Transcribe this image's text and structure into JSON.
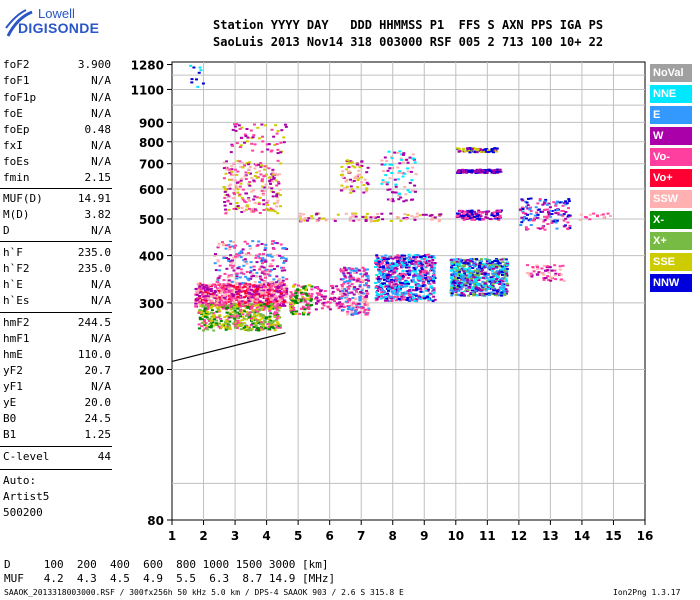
{
  "logo": {
    "line1": "Lowell",
    "line2": "DIGISONDE"
  },
  "header": {
    "row1": "Station YYYY DAY   DDD HHMMSS P1  FFS S AXN PPS IGA PS",
    "row2": "SaoLuis 2013 Nov14 318 003000 RSF 005 2 713 100 10+ 22"
  },
  "params": [
    {
      "key": "foF2",
      "value": "3.900"
    },
    {
      "key": "foF1",
      "value": "N/A"
    },
    {
      "key": "foF1p",
      "value": "N/A"
    },
    {
      "key": "foE",
      "value": "N/A"
    },
    {
      "key": "foEp",
      "value": "0.48"
    },
    {
      "key": "fxI",
      "value": "N/A"
    },
    {
      "key": "foEs",
      "value": "N/A"
    },
    {
      "key": "fmin",
      "value": "2.15"
    },
    {
      "key": "MUF(D)",
      "value": "14.91"
    },
    {
      "key": "M(D)",
      "value": "3.82"
    },
    {
      "key": "D",
      "value": "N/A"
    },
    {
      "key": "h`F",
      "value": "235.0"
    },
    {
      "key": "h`F2",
      "value": "235.0"
    },
    {
      "key": "h`E",
      "value": "N/A"
    },
    {
      "key": "h`Es",
      "value": "N/A"
    },
    {
      "key": "hmF2",
      "value": "244.5"
    },
    {
      "key": "hmF1",
      "value": "N/A"
    },
    {
      "key": "hmE",
      "value": "110.0"
    },
    {
      "key": "yF2",
      "value": "20.7"
    },
    {
      "key": "yF1",
      "value": "N/A"
    },
    {
      "key": "yE",
      "value": "20.0"
    },
    {
      "key": "B0",
      "value": "24.5"
    },
    {
      "key": "B1",
      "value": "1.25"
    },
    {
      "key": "C-level",
      "value": "44"
    }
  ],
  "autoscale": {
    "line1": "Auto:",
    "line2": "Artist5",
    "line3": "500200"
  },
  "bottom": {
    "d_row": "D     100  200  400  600  800 1000 1500 3000 [km]",
    "muf_row": "MUF   4.2  4.3  4.5  4.9  5.5  6.3  8.7 14.9 [MHz]",
    "footer_left": "SAAOK_2013318003000.RSF / 300fx256h 50 kHz 5.0 km / DPS-4 SAAOK 903 / 2.6 S 315.8 E",
    "footer_right": "Ion2Png 1.3.17"
  },
  "chart_data": {
    "type": "scatter",
    "xlabel": "",
    "ylabel": "",
    "xlim": [
      1,
      16
    ],
    "ylim": [
      80,
      1300
    ],
    "y_scale": "log",
    "x_ticks": [
      1,
      2,
      3,
      4,
      5,
      6,
      7,
      8,
      9,
      10,
      11,
      12,
      13,
      14,
      15,
      16
    ],
    "y_ticks": [
      80,
      200,
      300,
      400,
      500,
      600,
      700,
      800,
      900,
      1100,
      1280
    ],
    "grid": true,
    "legend_position": "right",
    "legend": [
      {
        "label": "NoVal",
        "color": "#a0a0a0"
      },
      {
        "label": "NNE",
        "color": "#00e8ff"
      },
      {
        "label": "E",
        "color": "#3399ff"
      },
      {
        "label": "W",
        "color": "#aa00aa"
      },
      {
        "label": "Vo-",
        "color": "#ff3fa0"
      },
      {
        "label": "Vo+",
        "color": "#ff0033"
      },
      {
        "label": "SSW",
        "color": "#ffb0b0"
      },
      {
        "label": "X-",
        "color": "#008800"
      },
      {
        "label": "X+",
        "color": "#77bb44"
      },
      {
        "label": "SSE",
        "color": "#cccc00"
      },
      {
        "label": "NNW",
        "color": "#0000dd"
      }
    ],
    "clusters": [
      {
        "x": [
          1.7,
          4.6
        ],
        "y": [
          295,
          340
        ],
        "colors": [
          "#ff3fa0",
          "#aa00aa",
          "#ff0033",
          "#ffb0b0"
        ],
        "n": 700
      },
      {
        "x": [
          1.8,
          4.4
        ],
        "y": [
          255,
          300
        ],
        "colors": [
          "#77bb44",
          "#008800",
          "#ff3fa0",
          "#cccc00"
        ],
        "n": 450
      },
      {
        "x": [
          2.3,
          4.6
        ],
        "y": [
          340,
          440
        ],
        "colors": [
          "#ff3fa0",
          "#ffb0b0",
          "#aa00aa",
          "#3399ff"
        ],
        "n": 220
      },
      {
        "x": [
          2.6,
          4.4
        ],
        "y": [
          520,
          720
        ],
        "colors": [
          "#aa00aa",
          "#ff3fa0",
          "#ffb0b0",
          "#cccc00"
        ],
        "n": 220
      },
      {
        "x": [
          2.8,
          4.6
        ],
        "y": [
          750,
          900
        ],
        "colors": [
          "#cccc00",
          "#ff3fa0",
          "#aa00aa"
        ],
        "n": 60
      },
      {
        "x": [
          4.7,
          5.4
        ],
        "y": [
          280,
          340
        ],
        "colors": [
          "#ff3fa0",
          "#cccc00",
          "#008800"
        ],
        "n": 120
      },
      {
        "x": [
          5.5,
          6.3
        ],
        "y": [
          290,
          335
        ],
        "colors": [
          "#ff3fa0",
          "#aa00aa"
        ],
        "n": 60
      },
      {
        "x": [
          6.3,
          7.2
        ],
        "y": [
          280,
          375
        ],
        "colors": [
          "#ff3fa0",
          "#ffb0b0",
          "#aa00aa",
          "#3399ff"
        ],
        "n": 240
      },
      {
        "x": [
          7.4,
          9.3
        ],
        "y": [
          305,
          405
        ],
        "colors": [
          "#3399ff",
          "#0000dd",
          "#00e8ff",
          "#ff3fa0",
          "#aa00aa"
        ],
        "n": 650
      },
      {
        "x": [
          9.8,
          11.6
        ],
        "y": [
          315,
          395
        ],
        "colors": [
          "#00e8ff",
          "#3399ff",
          "#0000dd",
          "#77bb44",
          "#aa00aa"
        ],
        "n": 650
      },
      {
        "x": [
          6.3,
          7.2
        ],
        "y": [
          590,
          720
        ],
        "colors": [
          "#ffb0b0",
          "#aa00aa",
          "#cccc00"
        ],
        "n": 70
      },
      {
        "x": [
          7.6,
          8.7
        ],
        "y": [
          560,
          760
        ],
        "colors": [
          "#ffb0b0",
          "#00e8ff",
          "#aa00aa"
        ],
        "n": 90
      },
      {
        "x": [
          10.0,
          11.4
        ],
        "y": [
          500,
          530
        ],
        "colors": [
          "#aa00aa",
          "#ff3fa0",
          "#0000dd"
        ],
        "n": 120
      },
      {
        "x": [
          10.0,
          11.4
        ],
        "y": [
          665,
          680
        ],
        "colors": [
          "#aa00aa",
          "#0000dd"
        ],
        "n": 110
      },
      {
        "x": [
          10.0,
          11.3
        ],
        "y": [
          755,
          775
        ],
        "colors": [
          "#0000dd",
          "#aa00aa",
          "#cccc00"
        ],
        "n": 70
      },
      {
        "x": [
          12.0,
          13.6
        ],
        "y": [
          470,
          570
        ],
        "colors": [
          "#ff3fa0",
          "#0000dd",
          "#3399ff",
          "#aa00aa"
        ],
        "n": 140
      },
      {
        "x": [
          12.2,
          13.4
        ],
        "y": [
          345,
          380
        ],
        "colors": [
          "#ff3fa0",
          "#ffb0b0",
          "#aa00aa"
        ],
        "n": 60
      },
      {
        "x": [
          5.0,
          9.5
        ],
        "y": [
          495,
          520
        ],
        "colors": [
          "#ffb0b0",
          "#cccc00",
          "#aa00aa"
        ],
        "n": 90
      },
      {
        "x": [
          13.8,
          15.1
        ],
        "y": [
          500,
          520
        ],
        "colors": [
          "#ff3fa0",
          "#ffb0b0"
        ],
        "n": 15
      },
      {
        "x": [
          1.5,
          2.0
        ],
        "y": [
          1100,
          1280
        ],
        "colors": [
          "#0000dd",
          "#00e8ff"
        ],
        "n": 10
      }
    ],
    "trace_curve": {
      "x": [
        1.0,
        4.6
      ],
      "y": [
        210,
        250
      ],
      "color": "#000000"
    }
  }
}
